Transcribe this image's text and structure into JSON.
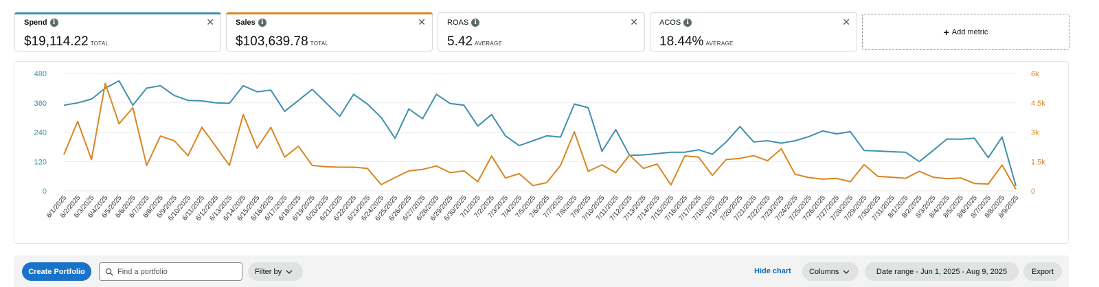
{
  "metrics": [
    {
      "name": "Spend",
      "value": "$19,114.22",
      "aggregate": "TOTAL",
      "accent": "#3f8fad",
      "bold": true
    },
    {
      "name": "Sales",
      "value": "$103,639.78",
      "aggregate": "TOTAL",
      "accent": "#d98520",
      "bold": true
    },
    {
      "name": "ROAS",
      "value": "5.42",
      "aggregate": "AVERAGE",
      "accent": "",
      "bold": false
    },
    {
      "name": "ACOS",
      "value": "18.44%",
      "aggregate": "AVERAGE",
      "accent": "",
      "bold": false
    }
  ],
  "add_metric": {
    "label": "Add metric"
  },
  "icons": {
    "info": "info-icon",
    "close": "close-icon",
    "search": "search-icon",
    "chevron": "chevron-down-icon",
    "plus": "plus-icon"
  },
  "chart_data": {
    "type": "line",
    "x": [
      "6/1/2025",
      "6/2/2025",
      "6/3/2025",
      "6/4/2025",
      "6/5/2025",
      "6/6/2025",
      "6/7/2025",
      "6/8/2025",
      "6/9/2025",
      "6/10/2025",
      "6/11/2025",
      "6/12/2025",
      "6/13/2025",
      "6/14/2025",
      "6/15/2025",
      "6/16/2025",
      "6/17/2025",
      "6/18/2025",
      "6/19/2025",
      "6/20/2025",
      "6/21/2025",
      "6/22/2025",
      "6/23/2025",
      "6/24/2025",
      "6/25/2025",
      "6/26/2025",
      "6/27/2025",
      "6/28/2025",
      "6/29/2025",
      "6/30/2025",
      "7/1/2025",
      "7/2/2025",
      "7/3/2025",
      "7/4/2025",
      "7/5/2025",
      "7/6/2025",
      "7/7/2025",
      "7/8/2025",
      "7/9/2025",
      "7/10/2025",
      "7/11/2025",
      "7/12/2025",
      "7/13/2025",
      "7/14/2025",
      "7/15/2025",
      "7/16/2025",
      "7/17/2025",
      "7/18/2025",
      "7/19/2025",
      "7/20/2025",
      "7/21/2025",
      "7/22/2025",
      "7/23/2025",
      "7/24/2025",
      "7/25/2025",
      "7/26/2025",
      "7/27/2025",
      "7/28/2025",
      "7/29/2025",
      "7/30/2025",
      "7/31/2025",
      "8/1/2025",
      "8/2/2025",
      "8/3/2025",
      "8/4/2025",
      "8/5/2025",
      "8/6/2025",
      "8/7/2025",
      "8/8/2025",
      "8/9/2025"
    ],
    "y_left": {
      "ticks": [
        0,
        120,
        240,
        360,
        480
      ],
      "tick_labels": [
        "0",
        "120",
        "240",
        "360",
        "480"
      ],
      "range": [
        0,
        480
      ],
      "color": "#3f8fad"
    },
    "y_right": {
      "ticks": [
        0,
        1500,
        3000,
        4500,
        6000
      ],
      "tick_labels": [
        "0",
        "1.5k",
        "3k",
        "4.5k",
        "6k"
      ],
      "range": [
        0,
        6000
      ],
      "color": "#d98520"
    },
    "grid": true,
    "legend": "none",
    "series": [
      {
        "axis": "left",
        "color": "#3f8fad",
        "values": [
          350,
          360,
          375,
          420,
          450,
          350,
          420,
          430,
          390,
          370,
          368,
          360,
          358,
          430,
          405,
          412,
          325,
          370,
          415,
          360,
          305,
          395,
          355,
          300,
          215,
          335,
          295,
          395,
          357,
          350,
          265,
          312,
          225,
          185,
          205,
          225,
          220,
          355,
          340,
          162,
          250,
          145,
          147,
          152,
          158,
          158,
          168,
          150,
          200,
          263,
          200,
          205,
          195,
          205,
          222,
          245,
          233,
          242,
          165,
          163,
          160,
          158,
          120,
          165,
          212,
          211,
          215,
          136,
          220,
          20
        ]
      },
      {
        "axis": "right",
        "color": "#d98520",
        "values": [
          1850,
          3550,
          1600,
          5500,
          3430,
          4250,
          1300,
          2800,
          2560,
          1800,
          3250,
          2280,
          1300,
          3900,
          2180,
          3250,
          1730,
          2280,
          1300,
          1230,
          1210,
          1210,
          1150,
          320,
          680,
          1020,
          1100,
          1270,
          930,
          1020,
          470,
          1780,
          660,
          880,
          270,
          420,
          1300,
          3020,
          1000,
          1330,
          930,
          1830,
          1150,
          1370,
          300,
          1790,
          1730,
          790,
          1600,
          1660,
          1800,
          1540,
          2150,
          850,
          680,
          600,
          640,
          470,
          1340,
          740,
          700,
          640,
          1000,
          700,
          620,
          660,
          380,
          350,
          1320,
          80
        ]
      }
    ]
  },
  "toolbar": {
    "create_label": "Create Portfolio",
    "search_placeholder": "Find a portfolio",
    "filter_label": "Filter by",
    "hide_chart_label": "Hide chart",
    "columns_label": "Columns",
    "date_range_label": "Date range - Jun 1, 2025 - Aug 9, 2025",
    "export_label": "Export"
  }
}
